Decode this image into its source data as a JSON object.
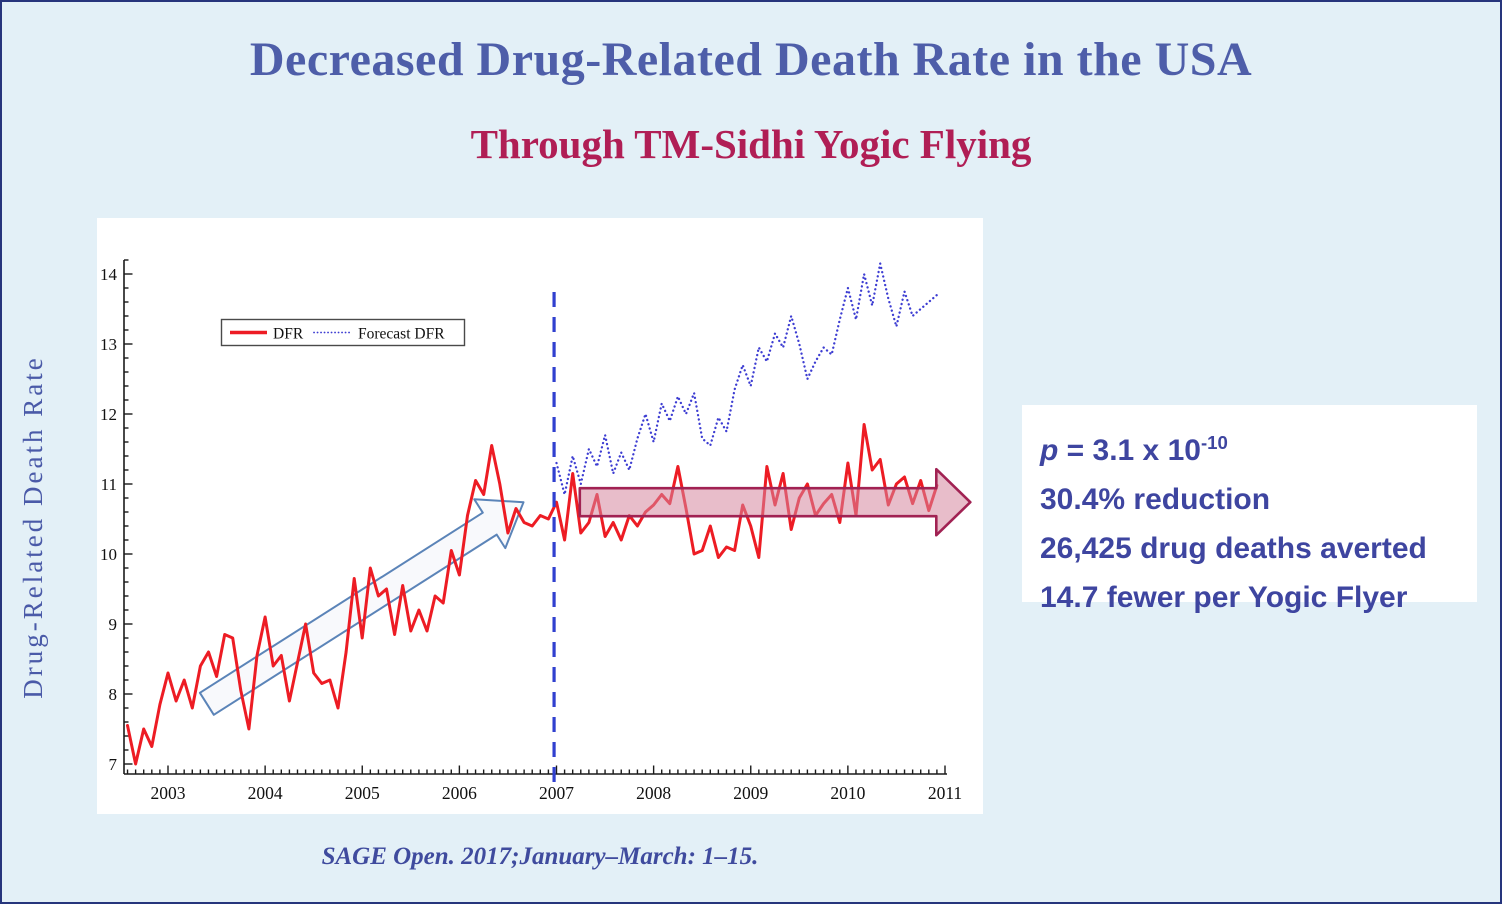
{
  "slide": {
    "title": "Decreased Drug-Related Death Rate in the USA",
    "subtitle": "Through TM-Sidhi Yogic Flying",
    "citation": "SAGE Open. 2017;January–March: 1–15.",
    "colors": {
      "background": "#e3f0f7",
      "border": "#26357c",
      "title_text": "#4e5ea9",
      "subtitle_text": "#b01e55",
      "stats_text": "#3e45a0",
      "citation_text": "#3f4b9e",
      "axis_label_text": "#4a5aa8"
    }
  },
  "stats_box": {
    "p_symbol": "p",
    "p_value": " = 3.1 x 10",
    "p_exponent": "-10",
    "lines": [
      "30.4% reduction",
      "26,425 drug deaths averted",
      "14.7 fewer per Yogic Flyer"
    ]
  },
  "chart_data": {
    "type": "line",
    "title": "",
    "xlabel": "",
    "ylabel": "Drug-Related Death Rate",
    "xlim": [
      2002.55,
      2011.05
    ],
    "ylim": [
      6.86,
      14.2
    ],
    "x_ticks": [
      2003,
      2004,
      2005,
      2006,
      2007,
      2008,
      2009,
      2010,
      2011
    ],
    "y_ticks": [
      7,
      8,
      9,
      10,
      11,
      12,
      13,
      14
    ],
    "grid": false,
    "legend_position": "upper-left-inside",
    "legend": [
      {
        "label": "DFR",
        "color": "#ed1c24",
        "style": "solid"
      },
      {
        "label": "Forecast DFR",
        "color": "#3d3dd2",
        "style": "dotted"
      }
    ],
    "series": [
      {
        "name": "DFR",
        "color": "#ed1c24",
        "style": "solid",
        "x_start": 2002.5833,
        "x_step_years": 0.083333,
        "values": [
          7.55,
          7.0,
          7.5,
          7.25,
          7.85,
          8.3,
          7.9,
          8.2,
          7.8,
          8.4,
          8.6,
          8.25,
          8.85,
          8.8,
          8.05,
          7.5,
          8.55,
          9.1,
          8.4,
          8.55,
          7.9,
          8.45,
          9.0,
          8.3,
          8.15,
          8.2,
          7.8,
          8.6,
          9.65,
          8.8,
          9.8,
          9.4,
          9.5,
          8.85,
          9.55,
          8.9,
          9.2,
          8.9,
          9.4,
          9.3,
          10.05,
          9.7,
          10.55,
          11.05,
          10.85,
          11.55,
          11.0,
          10.3,
          10.65,
          10.45,
          10.4,
          10.55,
          10.5,
          10.74,
          10.2,
          11.15,
          10.3,
          10.45,
          10.85,
          10.25,
          10.45,
          10.2,
          10.55,
          10.4,
          10.6,
          10.7,
          10.85,
          10.72,
          11.25,
          10.65,
          10.0,
          10.05,
          10.4,
          9.95,
          10.1,
          10.05,
          10.7,
          10.4,
          9.95,
          11.25,
          10.7,
          11.15,
          10.35,
          10.8,
          11.0,
          10.55,
          10.72,
          10.85,
          10.45,
          11.3,
          10.55,
          11.85,
          11.2,
          11.35,
          10.7,
          11.0,
          11.1,
          10.72,
          11.05,
          10.62,
          10.98
        ]
      },
      {
        "name": "Forecast DFR",
        "color": "#3d3dd2",
        "style": "dotted",
        "x_start": 2007.0,
        "x_step_years": 0.083333,
        "values": [
          11.3,
          10.85,
          11.4,
          11.0,
          11.5,
          11.25,
          11.7,
          11.15,
          11.45,
          11.2,
          11.65,
          12.0,
          11.6,
          12.15,
          11.9,
          12.25,
          12.0,
          12.3,
          11.65,
          11.55,
          11.95,
          11.75,
          12.35,
          12.7,
          12.4,
          12.95,
          12.75,
          13.15,
          12.95,
          13.4,
          13.0,
          12.5,
          12.75,
          12.95,
          12.85,
          13.35,
          13.8,
          13.35,
          14.0,
          13.55,
          14.15,
          13.65,
          13.25,
          13.75,
          13.4,
          13.5,
          13.6,
          13.7
        ]
      }
    ],
    "annotations": {
      "intervention_line": {
        "x": 2006.975,
        "style": "dashed",
        "color": "#3040cf"
      },
      "trend_up_arrow": {
        "x1": 2003.4,
        "y1": 7.86,
        "x2": 2006.66,
        "y2": 10.74,
        "stroke": "#5b84b8",
        "fill": "rgba(246,248,251,0.8)"
      },
      "flat_trend_arrow": {
        "x1": 2007.24,
        "y1": 10.74,
        "x2": 2011.26,
        "y2": 10.74,
        "stroke": "#a12253",
        "fill": "rgba(214,134,158,0.55)"
      }
    }
  }
}
